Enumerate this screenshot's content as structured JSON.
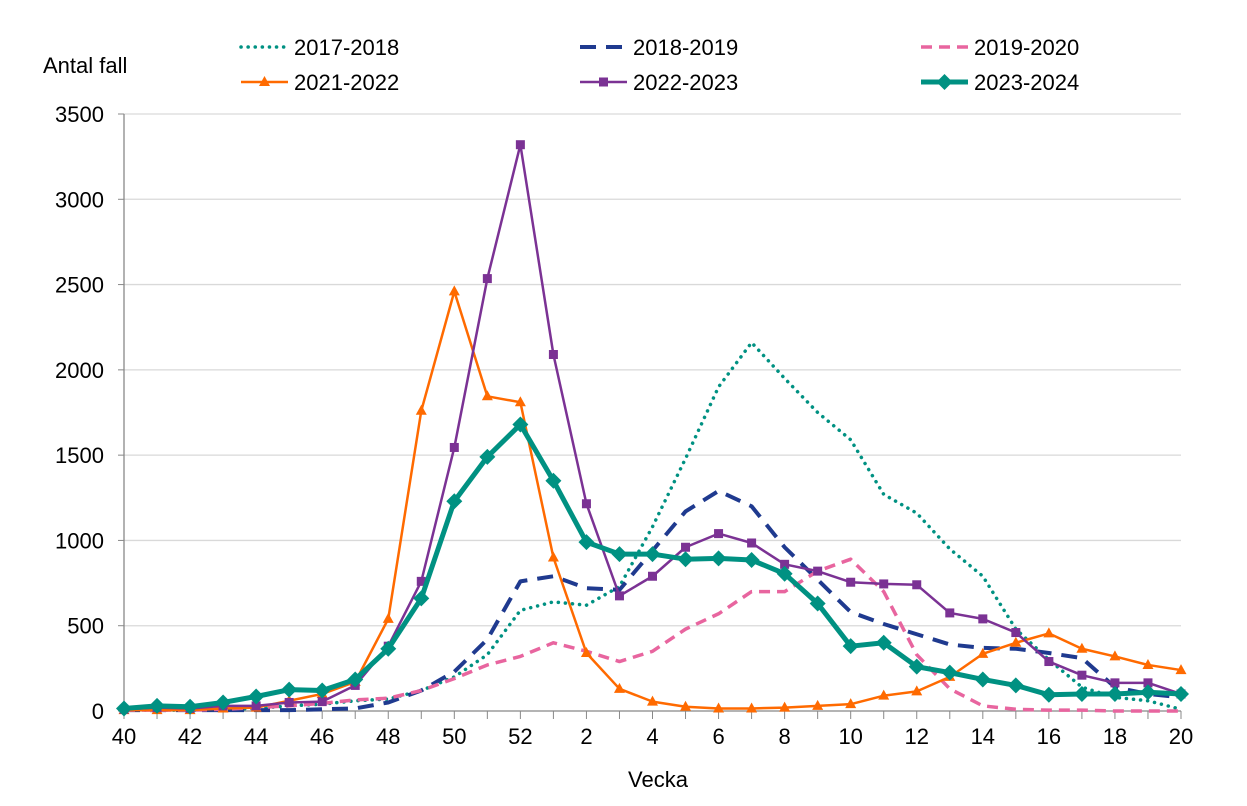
{
  "chart_data": {
    "type": "line",
    "ylabel": "Antal fall",
    "xlabel": "Vecka",
    "ylim": [
      0,
      3500
    ],
    "yticks": [
      0,
      500,
      1000,
      1500,
      2000,
      2500,
      3000,
      3500
    ],
    "grid": "horizontal",
    "legend_placement": "top",
    "categories": [
      "40",
      "41",
      "42",
      "43",
      "44",
      "45",
      "46",
      "47",
      "48",
      "49",
      "50",
      "51",
      "52",
      "1",
      "2",
      "3",
      "4",
      "5",
      "6",
      "7",
      "8",
      "9",
      "10",
      "11",
      "12",
      "13",
      "14",
      "15",
      "16",
      "17",
      "18",
      "19",
      "20"
    ],
    "xtick_labels": [
      "40",
      "42",
      "44",
      "46",
      "48",
      "50",
      "52",
      "2",
      "4",
      "6",
      "8",
      "10",
      "12",
      "14",
      "16",
      "18",
      "20"
    ],
    "series": [
      {
        "name": "2017-2018",
        "color": "#009182",
        "style": "dotted",
        "marker": "none",
        "values": [
          5,
          5,
          5,
          10,
          15,
          30,
          40,
          60,
          70,
          120,
          200,
          330,
          590,
          640,
          620,
          730,
          1080,
          1480,
          1900,
          2160,
          1950,
          1750,
          1590,
          1270,
          1160,
          950,
          790,
          480,
          300,
          140,
          80,
          60,
          10
        ]
      },
      {
        "name": "2018-2019",
        "color": "#1f3a8f",
        "style": "dashed",
        "marker": "none",
        "values": [
          5,
          5,
          5,
          5,
          5,
          5,
          10,
          15,
          50,
          120,
          230,
          420,
          760,
          790,
          720,
          710,
          940,
          1170,
          1290,
          1200,
          960,
          770,
          580,
          510,
          450,
          390,
          370,
          365,
          340,
          310,
          140,
          100,
          80
        ]
      },
      {
        "name": "2019-2020",
        "color": "#e8659f",
        "style": "dashed",
        "marker": "none",
        "values": [
          5,
          5,
          5,
          10,
          20,
          30,
          45,
          65,
          75,
          120,
          190,
          270,
          320,
          400,
          350,
          290,
          350,
          480,
          570,
          700,
          700,
          820,
          890,
          700,
          330,
          130,
          30,
          10,
          5,
          5,
          0,
          0,
          0
        ]
      },
      {
        "name": "2021-2022",
        "color": "#ff6a00",
        "style": "solid",
        "marker": "triangle",
        "values": [
          5,
          5,
          5,
          15,
          20,
          60,
          100,
          170,
          540,
          1760,
          2460,
          1845,
          1810,
          900,
          340,
          130,
          55,
          25,
          15,
          15,
          20,
          30,
          40,
          90,
          115,
          200,
          335,
          400,
          455,
          365,
          320,
          270,
          240
        ]
      },
      {
        "name": "2022-2023",
        "color": "#7b3294",
        "style": "solid",
        "marker": "square",
        "values": [
          10,
          20,
          15,
          30,
          30,
          50,
          55,
          150,
          380,
          760,
          1545,
          2535,
          3320,
          2090,
          1215,
          675,
          790,
          960,
          1040,
          985,
          860,
          820,
          755,
          745,
          740,
          575,
          540,
          460,
          290,
          210,
          165,
          165,
          100
        ]
      },
      {
        "name": "2023-2024",
        "color": "#009182",
        "style": "thick",
        "marker": "diamond",
        "values": [
          15,
          30,
          25,
          50,
          85,
          125,
          120,
          185,
          365,
          660,
          1230,
          1490,
          1680,
          1350,
          990,
          920,
          920,
          890,
          895,
          885,
          805,
          630,
          380,
          400,
          260,
          225,
          185,
          150,
          95,
          100,
          100,
          110,
          100
        ]
      }
    ]
  }
}
